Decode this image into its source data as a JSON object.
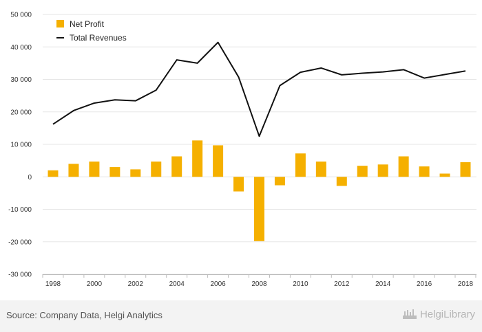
{
  "chart_data": {
    "type": "bar",
    "categories": [
      "1998",
      "1999",
      "2000",
      "2001",
      "2002",
      "2003",
      "2004",
      "2005",
      "2006",
      "2007",
      "2008",
      "2009",
      "2010",
      "2011",
      "2012",
      "2013",
      "2014",
      "2015",
      "2016",
      "2017",
      "2018"
    ],
    "x_tick_labels": [
      "1998",
      "2000",
      "2002",
      "2004",
      "2006",
      "2008",
      "2010",
      "2012",
      "2014",
      "2016",
      "2018"
    ],
    "ylim": [
      -30000,
      50000
    ],
    "y_ticks": [
      50000,
      40000,
      30000,
      20000,
      10000,
      0,
      -10000,
      -20000,
      -30000
    ],
    "y_tick_labels": [
      "50 000",
      "40 000",
      "30 000",
      "20 000",
      "10 000",
      "0",
      "-10 000",
      "-20 000",
      "-30 000"
    ],
    "grid": true,
    "legend_position": "top-left",
    "series": [
      {
        "name": "Net Profit",
        "type": "bar",
        "color": "#f5b000",
        "values": [
          2000,
          4000,
          4700,
          3000,
          2300,
          4700,
          6300,
          11200,
          9700,
          -4500,
          -19800,
          -2600,
          7200,
          4700,
          -2800,
          3400,
          3800,
          6300,
          3200,
          1000,
          4500
        ]
      },
      {
        "name": "Total Revenues",
        "type": "line",
        "color": "#111111",
        "values": [
          16200,
          20400,
          22700,
          23700,
          23400,
          26700,
          36000,
          35000,
          41400,
          30700,
          12500,
          28100,
          32200,
          33500,
          31400,
          31900,
          32300,
          33000,
          30400,
          31500,
          32600
        ]
      }
    ]
  },
  "footer": {
    "source": "Source: Company Data, Helgi Analytics",
    "brand": "HelgiLibrary",
    "brand_icon": "helgi-logo-icon"
  }
}
